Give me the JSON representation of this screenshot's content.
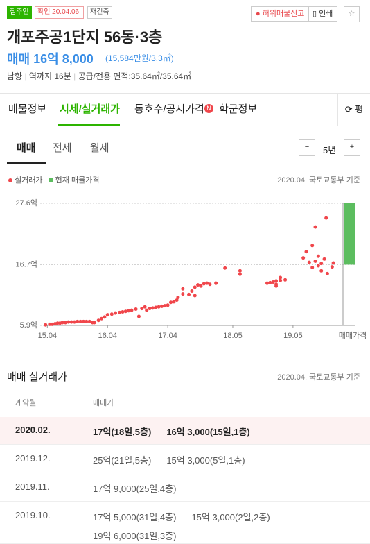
{
  "header": {
    "tags": [
      "집주인",
      "확인 20.04.06.",
      "재건축"
    ],
    "actions": [
      "허위매물신고",
      "인쇄"
    ],
    "title": "개포주공1단지 56동·3층",
    "price": "매매 16억 8,000",
    "price_per_area": "(15,584만원/3.3㎡)",
    "info": [
      "남향",
      "역까지 16분",
      "공급/전용 면적:35.64㎡/35.64㎡"
    ]
  },
  "tabs": [
    "매물정보",
    "시세/실거래가",
    "동호수/공시가격",
    "학군정보"
  ],
  "tab_badge": "N",
  "unit_toggle": "평",
  "subtabs": [
    "매매",
    "전세",
    "월세"
  ],
  "period": "5년",
  "chart_data": {
    "type": "scatter",
    "source": "2020.04. 국토교통부 기준",
    "xlim": [
      2015.2,
      2020.16
    ],
    "xticks": [
      {
        "value": 2015.25,
        "label": "15.04"
      },
      {
        "value": 2016.25,
        "label": "16.04"
      },
      {
        "value": 2017.25,
        "label": "17.04"
      },
      {
        "value": 2018.33,
        "label": "18.05"
      },
      {
        "value": 2019.33,
        "label": "19.05"
      }
    ],
    "ylim": [
      5.9,
      27.6
    ],
    "yticks": [
      {
        "value": 5.9,
        "label": "5.9억"
      },
      {
        "value": 16.7,
        "label": "16.7억"
      },
      {
        "value": 27.6,
        "label": "27.6억"
      }
    ],
    "grid": true,
    "series": [
      {
        "name": "실거래가",
        "color": "#f0464b",
        "x": [
          2015.22,
          2015.29,
          2015.33,
          2015.38,
          2015.42,
          2015.46,
          2015.5,
          2015.55,
          2015.6,
          2015.65,
          2015.7,
          2015.75,
          2015.8,
          2015.85,
          2015.9,
          2015.95,
          2016.0,
          2016.03,
          2016.1,
          2016.15,
          2016.2,
          2016.25,
          2016.32,
          2016.38,
          2016.45,
          2016.5,
          2016.55,
          2016.6,
          2016.65,
          2016.72,
          2016.77,
          2016.82,
          2016.87,
          2016.9,
          2016.95,
          2017.0,
          2017.05,
          2017.1,
          2017.15,
          2017.2,
          2017.25,
          2017.3,
          2017.35,
          2017.4,
          2017.42,
          2017.5,
          2017.5,
          2017.6,
          2017.65,
          2017.7,
          2017.7,
          2017.75,
          2017.8,
          2017.85,
          2017.9,
          2017.95,
          2018.05,
          2018.2,
          2018.45,
          2018.45,
          2018.9,
          2018.95,
          2019.0,
          2019.05,
          2019.05,
          2019.05,
          2019.12,
          2019.12,
          2019.2,
          2019.5,
          2019.55,
          2019.6,
          2019.65,
          2019.65,
          2019.7,
          2019.7,
          2019.75,
          2019.75,
          2019.8,
          2019.8,
          2019.85,
          2019.88,
          2019.9,
          2019.98,
          2020.0
        ],
        "values": [
          6.0,
          6.1,
          6.1,
          6.2,
          6.3,
          6.3,
          6.4,
          6.4,
          6.5,
          6.5,
          6.5,
          6.6,
          6.6,
          6.6,
          6.6,
          6.6,
          6.4,
          6.4,
          6.8,
          7.1,
          7.4,
          7.8,
          7.9,
          8.1,
          8.2,
          8.3,
          8.4,
          8.5,
          8.6,
          8.8,
          7.5,
          8.9,
          9.2,
          8.6,
          8.9,
          9.0,
          9.1,
          9.2,
          9.3,
          9.4,
          9.5,
          10.0,
          10.1,
          10.4,
          10.9,
          11.5,
          12.4,
          11.4,
          12.0,
          12.7,
          11.2,
          13.1,
          12.9,
          13.3,
          13.4,
          13.2,
          13.4,
          16.1,
          15.6,
          15.0,
          13.4,
          13.5,
          13.6,
          12.9,
          13.2,
          13.8,
          14.4,
          13.9,
          14.0,
          17.9,
          19.0,
          17.1,
          16.2,
          20.1,
          17.3,
          23.4,
          18.2,
          16.5,
          16.9,
          15.6,
          17.7,
          25.0,
          15.1,
          16.3,
          17.0
        ]
      },
      {
        "name": "현재 매물가격",
        "color": "#5cbd5f",
        "label": "매매가격",
        "range": [
          16.7,
          27.6
        ]
      }
    ]
  },
  "deals": {
    "title": "매매 실거래가",
    "source": "2020.04. 국토교통부 기준",
    "columns": [
      "계약월",
      "매매가"
    ],
    "rows": [
      {
        "month": "2020.02.",
        "items": [
          "17억(18일,5층)",
          "16억 3,000(15일,1층)"
        ]
      },
      {
        "month": "2019.12.",
        "items": [
          "25억(21일,5층)",
          "15억 3,000(5일,1층)"
        ]
      },
      {
        "month": "2019.11.",
        "items": [
          "17억 9,000(25일,4층)"
        ]
      },
      {
        "month": "2019.10.",
        "items": [
          "17억 5,000(31일,4층)",
          "15억 3,000(2일,2층)",
          "19억 6,000(31일,3층)"
        ]
      }
    ]
  }
}
